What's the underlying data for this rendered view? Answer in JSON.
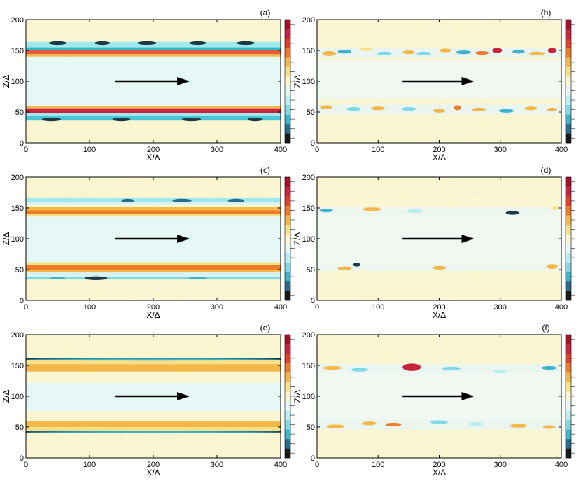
{
  "chart_data": [
    {
      "type": "heatmap",
      "panel_label": "(a)",
      "xlabel": "X/Δ",
      "ylabel": "Z/Δ",
      "xlim": [
        0,
        400
      ],
      "ylim": [
        0,
        200
      ],
      "xticks": [
        "0",
        "100",
        "200",
        "300",
        "400"
      ],
      "yticks": [
        "0",
        "50",
        "100",
        "150",
        "200"
      ],
      "background": "#fbf6d2",
      "interior": "#e6f8f6",
      "bands": [
        {
          "z0": 150,
          "z1": 200,
          "color": "#fbf6d2"
        },
        {
          "z0": 155,
          "z1": 164,
          "color": "#9fe8ee"
        },
        {
          "z0": 151,
          "z1": 155,
          "color": "#2fb5cc"
        },
        {
          "z0": 144,
          "z1": 151,
          "color": "#e55b3a"
        },
        {
          "z0": 140,
          "z1": 144,
          "color": "#f4b84a"
        },
        {
          "z0": 60,
          "z1": 140,
          "color": "#e6f8f6"
        },
        {
          "z0": 56,
          "z1": 60,
          "color": "#f4b84a"
        },
        {
          "z0": 48,
          "z1": 56,
          "color": "#c8243d"
        },
        {
          "z0": 44,
          "z1": 48,
          "color": "#9fe8ee"
        },
        {
          "z0": 36,
          "z1": 44,
          "color": "#4fc4d6"
        },
        {
          "z0": 0,
          "z1": 36,
          "color": "#fbf6d2"
        }
      ],
      "spots": [
        {
          "x": 50,
          "z": 162,
          "w": 28,
          "h": 3,
          "color": "#1a3a48"
        },
        {
          "x": 120,
          "z": 162,
          "w": 24,
          "h": 3,
          "color": "#1a3a48"
        },
        {
          "x": 190,
          "z": 162,
          "w": 30,
          "h": 3,
          "color": "#1a3a48"
        },
        {
          "x": 270,
          "z": 162,
          "w": 26,
          "h": 3,
          "color": "#1a3a48"
        },
        {
          "x": 345,
          "z": 162,
          "w": 28,
          "h": 3,
          "color": "#1a3a48"
        },
        {
          "x": 40,
          "z": 38,
          "w": 30,
          "h": 3,
          "color": "#1a3a48"
        },
        {
          "x": 150,
          "z": 38,
          "w": 28,
          "h": 3,
          "color": "#1a3a48"
        },
        {
          "x": 260,
          "z": 38,
          "w": 30,
          "h": 3,
          "color": "#1a3a48"
        },
        {
          "x": 360,
          "z": 38,
          "w": 24,
          "h": 3,
          "color": "#1a3a48"
        }
      ],
      "arrow": {
        "x0": 140,
        "x1": 255,
        "z": 100
      },
      "colorbar": [
        "#1a1a1a",
        "#2a6b8a",
        "#3fb3cc",
        "#7fd9e6",
        "#b9eef2",
        "#e6f8f6",
        "#fbf6d2",
        "#f7e08a",
        "#f4b84a",
        "#ef7a2a",
        "#e0402a",
        "#c8243d",
        "#a8102a"
      ]
    },
    {
      "type": "heatmap",
      "panel_label": "(b)",
      "xlabel": "X/Δ",
      "ylabel": "Z/Δ",
      "xlim": [
        0,
        400
      ],
      "ylim": [
        0,
        200
      ],
      "xticks": [
        "0",
        "100",
        "200",
        "300",
        "400"
      ],
      "yticks": [
        "0",
        "50",
        "100",
        "150",
        "200"
      ],
      "background": "#fbf6d2",
      "interior": "#eef7f2",
      "bands": [
        {
          "z0": 70,
          "z1": 135,
          "color": "#f1f8f1"
        },
        {
          "z0": 138,
          "z1": 154,
          "color": "#eaf5ef"
        },
        {
          "z0": 46,
          "z1": 62,
          "color": "#eaf5ef"
        }
      ],
      "spots": [
        {
          "x": 20,
          "z": 145,
          "w": 22,
          "h": 4,
          "color": "#f4b84a"
        },
        {
          "x": 45,
          "z": 148,
          "w": 22,
          "h": 3,
          "color": "#3fb3cc"
        },
        {
          "x": 80,
          "z": 152,
          "w": 20,
          "h": 3,
          "color": "#f7e08a"
        },
        {
          "x": 110,
          "z": 145,
          "w": 24,
          "h": 3,
          "color": "#7fd9e6"
        },
        {
          "x": 150,
          "z": 147,
          "w": 20,
          "h": 3,
          "color": "#f4b84a"
        },
        {
          "x": 175,
          "z": 145,
          "w": 24,
          "h": 3,
          "color": "#7fd9e6"
        },
        {
          "x": 210,
          "z": 150,
          "w": 20,
          "h": 3,
          "color": "#f4b84a"
        },
        {
          "x": 240,
          "z": 147,
          "w": 24,
          "h": 3,
          "color": "#3fb3cc"
        },
        {
          "x": 270,
          "z": 146,
          "w": 22,
          "h": 3,
          "color": "#ef7a2a"
        },
        {
          "x": 295,
          "z": 150,
          "w": 16,
          "h": 4,
          "color": "#c8243d"
        },
        {
          "x": 330,
          "z": 148,
          "w": 20,
          "h": 3,
          "color": "#3fb3cc"
        },
        {
          "x": 360,
          "z": 145,
          "w": 26,
          "h": 3,
          "color": "#f4b84a"
        },
        {
          "x": 385,
          "z": 150,
          "w": 14,
          "h": 4,
          "color": "#c8243d"
        },
        {
          "x": 15,
          "z": 58,
          "w": 20,
          "h": 3,
          "color": "#f4b84a"
        },
        {
          "x": 60,
          "z": 55,
          "w": 24,
          "h": 3,
          "color": "#7fd9e6"
        },
        {
          "x": 100,
          "z": 56,
          "w": 22,
          "h": 3,
          "color": "#f4b84a"
        },
        {
          "x": 150,
          "z": 55,
          "w": 24,
          "h": 3,
          "color": "#7fd9e6"
        },
        {
          "x": 200,
          "z": 52,
          "w": 20,
          "h": 3,
          "color": "#f4b84a"
        },
        {
          "x": 230,
          "z": 57,
          "w": 12,
          "h": 4,
          "color": "#ef7a2a"
        },
        {
          "x": 265,
          "z": 54,
          "w": 22,
          "h": 3,
          "color": "#f4b84a"
        },
        {
          "x": 310,
          "z": 52,
          "w": 24,
          "h": 3,
          "color": "#3fb3cc"
        },
        {
          "x": 350,
          "z": 56,
          "w": 20,
          "h": 3,
          "color": "#f4b84a"
        },
        {
          "x": 385,
          "z": 54,
          "w": 16,
          "h": 3,
          "color": "#f4b84a"
        }
      ],
      "arrow": {
        "x0": 140,
        "x1": 255,
        "z": 100
      },
      "colorbar": [
        "#1a1a1a",
        "#2a6b8a",
        "#3fb3cc",
        "#7fd9e6",
        "#b9eef2",
        "#e6f8f6",
        "#fbf6d2",
        "#f7e08a",
        "#f4b84a",
        "#ef7a2a",
        "#e0402a",
        "#c8243d",
        "#a8102a"
      ]
    },
    {
      "type": "heatmap",
      "panel_label": "(c)",
      "xlabel": "X/Δ",
      "ylabel": "Z/Δ",
      "xlim": [
        0,
        400
      ],
      "ylim": [
        0,
        200
      ],
      "xticks": [
        "0",
        "100",
        "200",
        "300",
        "400"
      ],
      "yticks": [
        "0",
        "50",
        "100",
        "150",
        "200"
      ],
      "background": "#fbf6d2",
      "interior": "#e6f8f6",
      "bands": [
        {
          "z0": 160,
          "z1": 166,
          "color": "#9fe8ee"
        },
        {
          "z0": 155,
          "z1": 160,
          "color": "#d7f2f0"
        },
        {
          "z0": 146,
          "z1": 152,
          "color": "#f4b84a"
        },
        {
          "z0": 140,
          "z1": 146,
          "color": "#ef7a2a"
        },
        {
          "z0": 136,
          "z1": 140,
          "color": "#f7e08a"
        },
        {
          "z0": 62,
          "z1": 136,
          "color": "#e6f8f6"
        },
        {
          "z0": 58,
          "z1": 62,
          "color": "#f7e08a"
        },
        {
          "z0": 50,
          "z1": 58,
          "color": "#ef7a2a"
        },
        {
          "z0": 46,
          "z1": 50,
          "color": "#f4b84a"
        },
        {
          "z0": 38,
          "z1": 46,
          "color": "#d7f2f0"
        },
        {
          "z0": 34,
          "z1": 38,
          "color": "#7fd9e6"
        }
      ],
      "spots": [
        {
          "x": 160,
          "z": 162,
          "w": 20,
          "h": 3,
          "color": "#2a6b8a"
        },
        {
          "x": 245,
          "z": 162,
          "w": 30,
          "h": 3,
          "color": "#2a6b8a"
        },
        {
          "x": 330,
          "z": 162,
          "w": 26,
          "h": 3,
          "color": "#2a6b8a"
        },
        {
          "x": 110,
          "z": 36,
          "w": 36,
          "h": 3,
          "color": "#1a3a48"
        },
        {
          "x": 50,
          "z": 36,
          "w": 24,
          "h": 2,
          "color": "#3fb3cc"
        },
        {
          "x": 270,
          "z": 36,
          "w": 30,
          "h": 2,
          "color": "#3fb3cc"
        }
      ],
      "arrow": {
        "x0": 140,
        "x1": 255,
        "z": 100
      },
      "colorbar": [
        "#1a1a1a",
        "#2a6b8a",
        "#3fb3cc",
        "#7fd9e6",
        "#b9eef2",
        "#e6f8f6",
        "#fbf6d2",
        "#f7e08a",
        "#f4b84a",
        "#ef7a2a",
        "#e0402a",
        "#c8243d",
        "#a8102a"
      ]
    },
    {
      "type": "heatmap",
      "panel_label": "(d)",
      "xlabel": "X/Δ",
      "ylabel": "Z/Δ",
      "xlim": [
        0,
        400
      ],
      "ylim": [
        0,
        200
      ],
      "xticks": [
        "0",
        "100",
        "200",
        "300",
        "400"
      ],
      "yticks": [
        "0",
        "50",
        "100",
        "150",
        "200"
      ],
      "background": "#fbf6d2",
      "interior": "#f1f8f1",
      "bands": [
        {
          "z0": 60,
          "z1": 140,
          "color": "#f1f8f1"
        },
        {
          "z0": 140,
          "z1": 152,
          "color": "#ecf6ee"
        },
        {
          "z0": 48,
          "z1": 60,
          "color": "#ecf6ee"
        }
      ],
      "spots": [
        {
          "x": 15,
          "z": 146,
          "w": 22,
          "h": 3,
          "color": "#3fb3cc"
        },
        {
          "x": 90,
          "z": 148,
          "w": 30,
          "h": 3,
          "color": "#f4b84a"
        },
        {
          "x": 160,
          "z": 145,
          "w": 26,
          "h": 3,
          "color": "#b9eef2"
        },
        {
          "x": 320,
          "z": 142,
          "w": 22,
          "h": 3,
          "color": "#1a3a48"
        },
        {
          "x": 390,
          "z": 150,
          "w": 16,
          "h": 3,
          "color": "#f7e08a"
        },
        {
          "x": 45,
          "z": 52,
          "w": 22,
          "h": 3,
          "color": "#f4b84a"
        },
        {
          "x": 65,
          "z": 58,
          "w": 12,
          "h": 3,
          "color": "#1a3a48"
        },
        {
          "x": 200,
          "z": 53,
          "w": 22,
          "h": 3,
          "color": "#f4b84a"
        },
        {
          "x": 385,
          "z": 55,
          "w": 18,
          "h": 4,
          "color": "#f4b84a"
        }
      ],
      "arrow": {
        "x0": 140,
        "x1": 255,
        "z": 100
      },
      "colorbar": [
        "#1a1a1a",
        "#2a6b8a",
        "#3fb3cc",
        "#7fd9e6",
        "#b9eef2",
        "#e6f8f6",
        "#fbf6d2",
        "#f7e08a",
        "#f4b84a",
        "#ef7a2a",
        "#e0402a",
        "#c8243d",
        "#a8102a"
      ]
    },
    {
      "type": "heatmap",
      "panel_label": "(e)",
      "xlabel": "X/Δ",
      "ylabel": "Z/Δ",
      "xlim": [
        0,
        400
      ],
      "ylim": [
        0,
        200
      ],
      "xticks": [
        "0",
        "100",
        "200",
        "300",
        "400"
      ],
      "yticks": [
        "0",
        "50",
        "100",
        "150",
        "200"
      ],
      "background": "#fbf6d2",
      "interior": "#e6f8f6",
      "bands": [
        {
          "z0": 159,
          "z1": 162,
          "color": "#1a3a48"
        },
        {
          "z0": 152,
          "z1": 159,
          "color": "#f7e08a"
        },
        {
          "z0": 140,
          "z1": 152,
          "color": "#f4b84a"
        },
        {
          "z0": 122,
          "z1": 140,
          "color": "#fbf6d2"
        },
        {
          "z0": 76,
          "z1": 122,
          "color": "#e6f8f6"
        },
        {
          "z0": 60,
          "z1": 76,
          "color": "#fbf6d2"
        },
        {
          "z0": 50,
          "z1": 60,
          "color": "#f4b84a"
        },
        {
          "z0": 44,
          "z1": 50,
          "color": "#f7e08a"
        },
        {
          "z0": 41,
          "z1": 44,
          "color": "#1a3a48"
        }
      ],
      "spots": [
        {
          "x": 200,
          "z": 160,
          "w": 400,
          "h": 1,
          "color": "#3fb3cc"
        },
        {
          "x": 200,
          "z": 42,
          "w": 400,
          "h": 1,
          "color": "#3fb3cc"
        }
      ],
      "arrow": {
        "x0": 140,
        "x1": 255,
        "z": 100
      },
      "colorbar": [
        "#1a1a1a",
        "#2a6b8a",
        "#3fb3cc",
        "#7fd9e6",
        "#b9eef2",
        "#e6f8f6",
        "#fbf6d2",
        "#f7e08a",
        "#f4b84a",
        "#ef7a2a",
        "#e0402a",
        "#c8243d",
        "#a8102a"
      ]
    },
    {
      "type": "heatmap",
      "panel_label": "(f)",
      "xlabel": "X/Δ",
      "ylabel": "Z/Δ",
      "xlim": [
        0,
        400
      ],
      "ylim": [
        0,
        200
      ],
      "xticks": [
        "0",
        "100",
        "200",
        "300",
        "400"
      ],
      "yticks": [
        "0",
        "50",
        "100",
        "150",
        "200"
      ],
      "background": "#fbf6d2",
      "interior": "#f1f8f1",
      "bands": [
        {
          "z0": 60,
          "z1": 140,
          "color": "#f1f8f1"
        },
        {
          "z0": 138,
          "z1": 152,
          "color": "#eaf5ef"
        },
        {
          "z0": 46,
          "z1": 62,
          "color": "#eaf5ef"
        }
      ],
      "spots": [
        {
          "x": 25,
          "z": 146,
          "w": 30,
          "h": 3,
          "color": "#f4b84a"
        },
        {
          "x": 70,
          "z": 143,
          "w": 28,
          "h": 3,
          "color": "#7fd9e6"
        },
        {
          "x": 155,
          "z": 147,
          "w": 30,
          "h": 6,
          "color": "#c8243d"
        },
        {
          "x": 220,
          "z": 145,
          "w": 30,
          "h": 3,
          "color": "#7fd9e6"
        },
        {
          "x": 300,
          "z": 140,
          "w": 24,
          "h": 3,
          "color": "#b9eef2"
        },
        {
          "x": 380,
          "z": 146,
          "w": 24,
          "h": 3,
          "color": "#3fb3cc"
        },
        {
          "x": 30,
          "z": 51,
          "w": 30,
          "h": 3,
          "color": "#f4b84a"
        },
        {
          "x": 85,
          "z": 56,
          "w": 24,
          "h": 3,
          "color": "#f4b84a"
        },
        {
          "x": 125,
          "z": 54,
          "w": 26,
          "h": 3,
          "color": "#ef7a2a"
        },
        {
          "x": 200,
          "z": 58,
          "w": 28,
          "h": 3,
          "color": "#7fd9e6"
        },
        {
          "x": 260,
          "z": 55,
          "w": 24,
          "h": 3,
          "color": "#b9eef2"
        },
        {
          "x": 330,
          "z": 52,
          "w": 28,
          "h": 3,
          "color": "#f4b84a"
        },
        {
          "x": 380,
          "z": 50,
          "w": 20,
          "h": 3,
          "color": "#f4b84a"
        }
      ],
      "arrow": {
        "x0": 140,
        "x1": 255,
        "z": 100
      },
      "colorbar": [
        "#1a1a1a",
        "#2a6b8a",
        "#3fb3cc",
        "#7fd9e6",
        "#b9eef2",
        "#e6f8f6",
        "#fbf6d2",
        "#f7e08a",
        "#f4b84a",
        "#ef7a2a",
        "#e0402a",
        "#c8243d",
        "#a8102a"
      ]
    }
  ]
}
